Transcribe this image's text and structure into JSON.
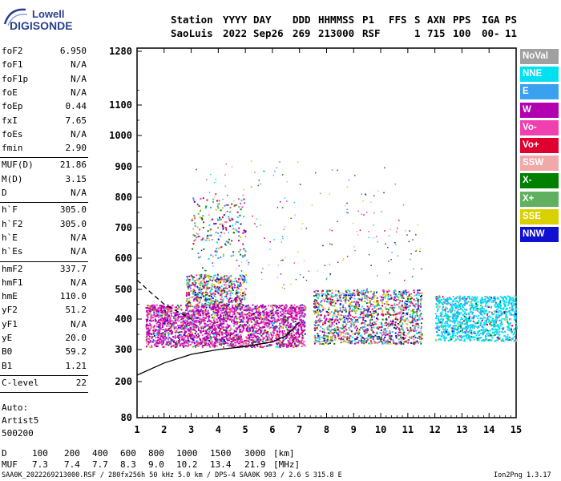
{
  "logo": {
    "line1": "Lowell",
    "line2": "DIGISONDE"
  },
  "header": {
    "labels": [
      "Station",
      "YYYY",
      "DAY",
      "DDD",
      "HHMMSS",
      "P1",
      "FFS",
      "S",
      "AXN",
      "PPS",
      "IGA",
      "PS"
    ],
    "values": [
      "SaoLuis",
      "2022",
      "Sep26",
      "269",
      "213000",
      "RSF",
      "",
      "1",
      "715",
      "100",
      "00-",
      "11"
    ]
  },
  "params": [
    {
      "group": [
        {
          "name": "foF2",
          "value": "6.950"
        },
        {
          "name": "foF1",
          "value": "N/A"
        },
        {
          "name": "foF1p",
          "value": "N/A"
        },
        {
          "name": "foE",
          "value": "N/A"
        },
        {
          "name": "foEp",
          "value": "0.44"
        },
        {
          "name": "fxI",
          "value": "7.65"
        },
        {
          "name": "foEs",
          "value": "N/A"
        },
        {
          "name": "fmin",
          "value": "2.90"
        }
      ]
    },
    {
      "group": [
        {
          "name": "MUF(D)",
          "value": "21.86"
        },
        {
          "name": "M(D)",
          "value": "3.15"
        },
        {
          "name": "D",
          "value": "N/A"
        }
      ]
    },
    {
      "group": [
        {
          "name": "h`F",
          "value": "305.0"
        },
        {
          "name": "h`F2",
          "value": "305.0"
        },
        {
          "name": "h`E",
          "value": "N/A"
        },
        {
          "name": "h`Es",
          "value": "N/A"
        }
      ]
    },
    {
      "group": [
        {
          "name": "hmF2",
          "value": "337.7"
        },
        {
          "name": "hmF1",
          "value": "N/A"
        },
        {
          "name": "hmE",
          "value": "110.0"
        },
        {
          "name": "yF2",
          "value": "51.2"
        },
        {
          "name": "yF1",
          "value": "N/A"
        },
        {
          "name": "yE",
          "value": "20.0"
        },
        {
          "name": "B0",
          "value": "59.2"
        },
        {
          "name": "B1",
          "value": "1.21"
        }
      ]
    },
    {
      "group": [
        {
          "name": "C-level",
          "value": "22"
        }
      ]
    }
  ],
  "auto": {
    "line1": "Auto:",
    "line2": "Artist5",
    "line3": "500200"
  },
  "legend": [
    {
      "label": "NoVal",
      "color": "#a0a0a0"
    },
    {
      "label": "NNE",
      "color": "#00e0f0"
    },
    {
      "label": "E",
      "color": "#3aa0f0"
    },
    {
      "label": "W",
      "color": "#b000b0"
    },
    {
      "label": "Vo-",
      "color": "#f040b0"
    },
    {
      "label": "Vo+",
      "color": "#e00030"
    },
    {
      "label": "SSW",
      "color": "#f0a8a8"
    },
    {
      "label": "X-",
      "color": "#008000"
    },
    {
      "label": "X+",
      "color": "#60b060"
    },
    {
      "label": "SSE",
      "color": "#d8d000"
    },
    {
      "label": "NNW",
      "color": "#1010d0"
    }
  ],
  "chart_data": {
    "type": "scatter",
    "title": "",
    "xlabel": "",
    "ylabel": "",
    "xlim": [
      1,
      15
    ],
    "ylim": [
      80,
      1280
    ],
    "x_ticks": [
      1,
      2,
      3,
      4,
      5,
      6,
      7,
      8,
      9,
      10,
      11,
      12,
      13,
      14,
      15
    ],
    "y_ticks": [
      80,
      200,
      300,
      400,
      500,
      600,
      700,
      800,
      900,
      1000,
      1100,
      1280
    ],
    "traces": [
      {
        "x_range": [
          1.3,
          7.2
        ],
        "y_range": [
          310,
          450
        ]
      },
      {
        "x_range": [
          2.8,
          5.0
        ],
        "y_range": [
          450,
          550
        ]
      },
      {
        "x_range": [
          3.0,
          5.0
        ],
        "y_range": [
          600,
          800
        ]
      },
      {
        "x_range": [
          7.5,
          11.5
        ],
        "y_range": [
          320,
          500
        ]
      },
      {
        "x_range": [
          12.0,
          15.0
        ],
        "y_range": [
          330,
          480
        ]
      }
    ],
    "profile_solid": {
      "x": [
        1.0,
        2.0,
        3.0,
        4.0,
        5.0,
        6.0,
        6.5,
        7.0
      ],
      "y": [
        220,
        258,
        285,
        300,
        310,
        325,
        345,
        390
      ]
    },
    "profile_dashed": {
      "x": [
        1.0,
        1.5,
        2.0,
        2.6,
        3.0
      ],
      "y": [
        530,
        490,
        450,
        420,
        400
      ]
    }
  },
  "bottom": {
    "d_label": "D",
    "d_values": [
      "100",
      "200",
      "400",
      "600",
      "800",
      "1000",
      "1500",
      "3000",
      "[km]"
    ],
    "muf_label": "MUF",
    "muf_values": [
      "7.3",
      "7.4",
      "7.7",
      "8.3",
      "9.0",
      "10.2",
      "13.4",
      "21.9",
      "[MHz]"
    ],
    "footer_left": "SAA0K_2022269213000.RSF / 280fx256h 50 kHz 5.0 km / DPS-4 SAA0K 903 / 2.6 S 315.8 E",
    "footer_right": "Ion2Png 1.3.17"
  }
}
